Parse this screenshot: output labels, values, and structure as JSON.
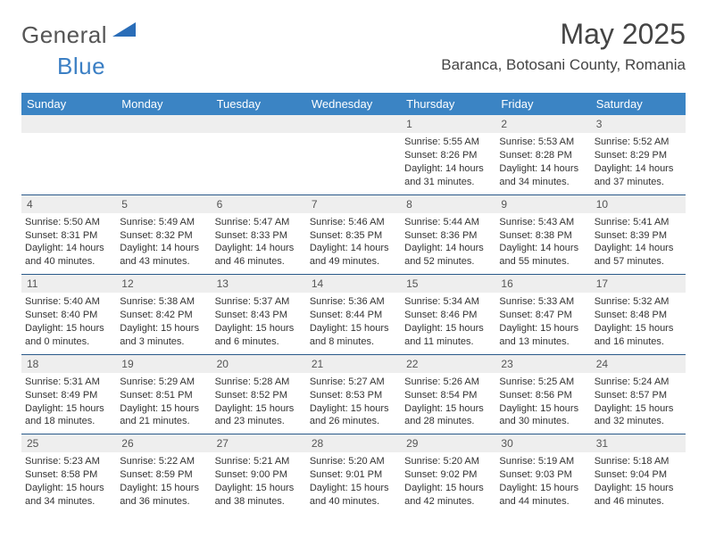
{
  "brand": {
    "part1": "General",
    "part2": "Blue"
  },
  "title": "May 2025",
  "location": "Baranca, Botosani County, Romania",
  "colors": {
    "header_bg": "#3b84c4",
    "row_divider": "#2a5a8a",
    "daynum_bg": "#eeeeee",
    "text": "#333333",
    "brand_blue": "#3b7fc4"
  },
  "weekdays": [
    "Sunday",
    "Monday",
    "Tuesday",
    "Wednesday",
    "Thursday",
    "Friday",
    "Saturday"
  ],
  "weeks": [
    [
      null,
      null,
      null,
      null,
      {
        "n": "1",
        "sr": "5:55 AM",
        "ss": "8:26 PM",
        "dl": "14 hours and 31 minutes."
      },
      {
        "n": "2",
        "sr": "5:53 AM",
        "ss": "8:28 PM",
        "dl": "14 hours and 34 minutes."
      },
      {
        "n": "3",
        "sr": "5:52 AM",
        "ss": "8:29 PM",
        "dl": "14 hours and 37 minutes."
      }
    ],
    [
      {
        "n": "4",
        "sr": "5:50 AM",
        "ss": "8:31 PM",
        "dl": "14 hours and 40 minutes."
      },
      {
        "n": "5",
        "sr": "5:49 AM",
        "ss": "8:32 PM",
        "dl": "14 hours and 43 minutes."
      },
      {
        "n": "6",
        "sr": "5:47 AM",
        "ss": "8:33 PM",
        "dl": "14 hours and 46 minutes."
      },
      {
        "n": "7",
        "sr": "5:46 AM",
        "ss": "8:35 PM",
        "dl": "14 hours and 49 minutes."
      },
      {
        "n": "8",
        "sr": "5:44 AM",
        "ss": "8:36 PM",
        "dl": "14 hours and 52 minutes."
      },
      {
        "n": "9",
        "sr": "5:43 AM",
        "ss": "8:38 PM",
        "dl": "14 hours and 55 minutes."
      },
      {
        "n": "10",
        "sr": "5:41 AM",
        "ss": "8:39 PM",
        "dl": "14 hours and 57 minutes."
      }
    ],
    [
      {
        "n": "11",
        "sr": "5:40 AM",
        "ss": "8:40 PM",
        "dl": "15 hours and 0 minutes."
      },
      {
        "n": "12",
        "sr": "5:38 AM",
        "ss": "8:42 PM",
        "dl": "15 hours and 3 minutes."
      },
      {
        "n": "13",
        "sr": "5:37 AM",
        "ss": "8:43 PM",
        "dl": "15 hours and 6 minutes."
      },
      {
        "n": "14",
        "sr": "5:36 AM",
        "ss": "8:44 PM",
        "dl": "15 hours and 8 minutes."
      },
      {
        "n": "15",
        "sr": "5:34 AM",
        "ss": "8:46 PM",
        "dl": "15 hours and 11 minutes."
      },
      {
        "n": "16",
        "sr": "5:33 AM",
        "ss": "8:47 PM",
        "dl": "15 hours and 13 minutes."
      },
      {
        "n": "17",
        "sr": "5:32 AM",
        "ss": "8:48 PM",
        "dl": "15 hours and 16 minutes."
      }
    ],
    [
      {
        "n": "18",
        "sr": "5:31 AM",
        "ss": "8:49 PM",
        "dl": "15 hours and 18 minutes."
      },
      {
        "n": "19",
        "sr": "5:29 AM",
        "ss": "8:51 PM",
        "dl": "15 hours and 21 minutes."
      },
      {
        "n": "20",
        "sr": "5:28 AM",
        "ss": "8:52 PM",
        "dl": "15 hours and 23 minutes."
      },
      {
        "n": "21",
        "sr": "5:27 AM",
        "ss": "8:53 PM",
        "dl": "15 hours and 26 minutes."
      },
      {
        "n": "22",
        "sr": "5:26 AM",
        "ss": "8:54 PM",
        "dl": "15 hours and 28 minutes."
      },
      {
        "n": "23",
        "sr": "5:25 AM",
        "ss": "8:56 PM",
        "dl": "15 hours and 30 minutes."
      },
      {
        "n": "24",
        "sr": "5:24 AM",
        "ss": "8:57 PM",
        "dl": "15 hours and 32 minutes."
      }
    ],
    [
      {
        "n": "25",
        "sr": "5:23 AM",
        "ss": "8:58 PM",
        "dl": "15 hours and 34 minutes."
      },
      {
        "n": "26",
        "sr": "5:22 AM",
        "ss": "8:59 PM",
        "dl": "15 hours and 36 minutes."
      },
      {
        "n": "27",
        "sr": "5:21 AM",
        "ss": "9:00 PM",
        "dl": "15 hours and 38 minutes."
      },
      {
        "n": "28",
        "sr": "5:20 AM",
        "ss": "9:01 PM",
        "dl": "15 hours and 40 minutes."
      },
      {
        "n": "29",
        "sr": "5:20 AM",
        "ss": "9:02 PM",
        "dl": "15 hours and 42 minutes."
      },
      {
        "n": "30",
        "sr": "5:19 AM",
        "ss": "9:03 PM",
        "dl": "15 hours and 44 minutes."
      },
      {
        "n": "31",
        "sr": "5:18 AM",
        "ss": "9:04 PM",
        "dl": "15 hours and 46 minutes."
      }
    ]
  ],
  "labels": {
    "sunrise": "Sunrise:",
    "sunset": "Sunset:",
    "daylight": "Daylight:"
  }
}
